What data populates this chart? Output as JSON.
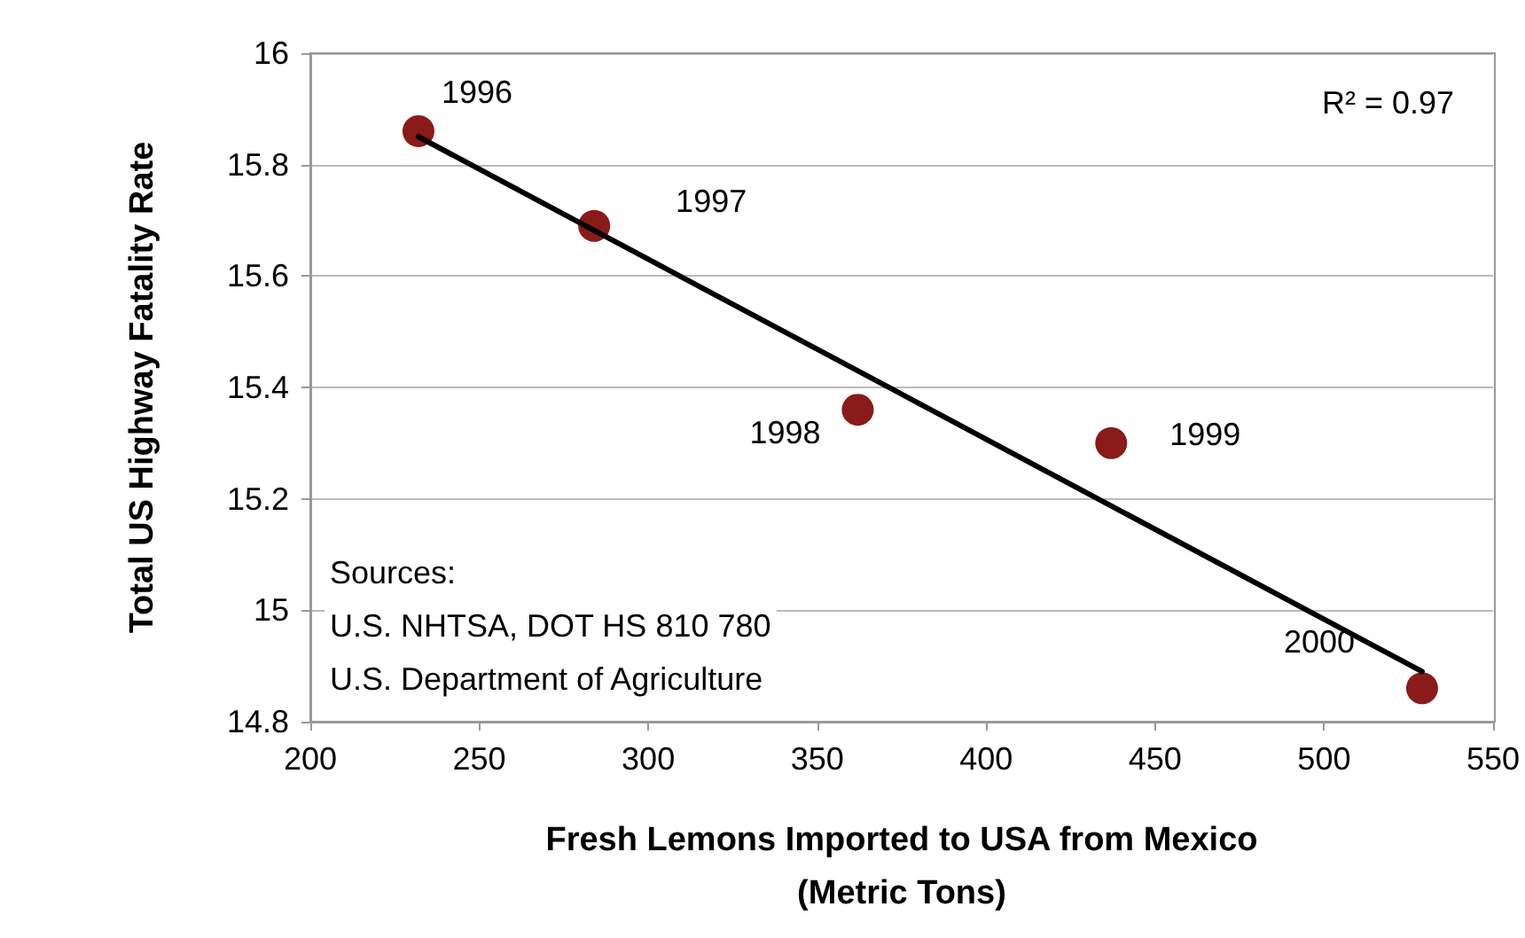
{
  "chart_data": {
    "type": "scatter",
    "xlabel": "Fresh Lemons Imported to USA from Mexico\n(Metric Tons)",
    "ylabel": "Total US Highway Fatality Rate",
    "x": [
      232,
      284,
      362,
      437,
      529
    ],
    "series": [
      {
        "color": "#8b1a1a",
        "marker": "circle",
        "values": [
          15.86,
          15.69,
          15.36,
          15.3,
          14.86
        ]
      },
      {
        "type": "line",
        "color": "#000000",
        "marker": "none",
        "line_style": "solid",
        "x": [
          232,
          529
        ],
        "values": [
          15.85,
          14.89
        ]
      }
    ],
    "xlim": [
      200,
      550
    ],
    "xticks": [
      200,
      250,
      300,
      350,
      400,
      450,
      500,
      550
    ],
    "ylim": [
      14.8,
      16
    ],
    "yticks": [
      14.8,
      15,
      15.2,
      15.4,
      15.6,
      15.8,
      16
    ],
    "grid": "y",
    "annotations": [
      "R² = 0.97",
      "Sources:",
      "U.S. NHTSA, DOT HS 810 780",
      "U.S. Department of Agriculture",
      {
        "text": "1996",
        "x": 232,
        "y": 15.86
      },
      {
        "text": "1997",
        "x": 284,
        "y": 15.69
      },
      {
        "text": "1998",
        "x": 362,
        "y": 15.36
      },
      {
        "text": "1999",
        "x": 437,
        "y": 15.3
      },
      {
        "text": "2000",
        "x": 529,
        "y": 14.86
      }
    ]
  }
}
